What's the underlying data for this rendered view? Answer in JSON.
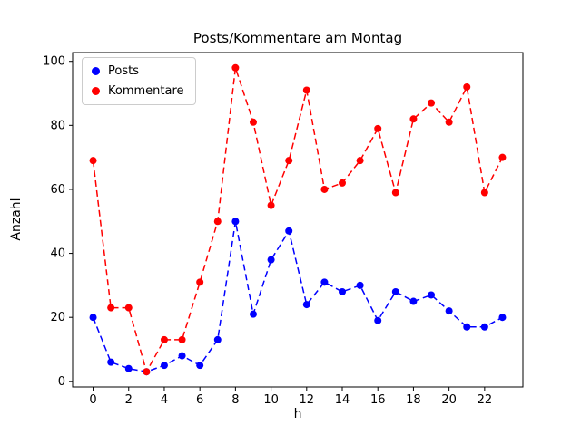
{
  "chart_data": {
    "type": "line",
    "title": "Posts/Kommentare am Montag",
    "xlabel": "h",
    "ylabel": "Anzahl",
    "x": [
      0,
      1,
      2,
      3,
      4,
      5,
      6,
      7,
      8,
      9,
      10,
      11,
      12,
      13,
      14,
      15,
      16,
      17,
      18,
      19,
      20,
      21,
      22,
      23
    ],
    "series": [
      {
        "name": "Posts",
        "color": "#0000ff",
        "values": [
          20,
          6,
          4,
          3,
          5,
          8,
          5,
          13,
          50,
          21,
          38,
          47,
          24,
          31,
          28,
          30,
          19,
          28,
          25,
          27,
          22,
          17,
          17,
          20
        ]
      },
      {
        "name": "Kommentare",
        "color": "#ff0000",
        "values": [
          69,
          23,
          23,
          3,
          13,
          13,
          31,
          50,
          98,
          81,
          55,
          69,
          91,
          60,
          62,
          69,
          79,
          59,
          82,
          87,
          81,
          92,
          59,
          70
        ]
      }
    ],
    "xlim": [
      -1.15,
      24.15
    ],
    "ylim": [
      -1.75,
      102.75
    ],
    "xticks": [
      0,
      2,
      4,
      6,
      8,
      10,
      12,
      14,
      16,
      18,
      20,
      22
    ],
    "yticks": [
      0,
      20,
      40,
      60,
      80,
      100
    ],
    "line_style": "dashed",
    "marker": "circle",
    "legend_position": "upper left",
    "grid": false
  }
}
